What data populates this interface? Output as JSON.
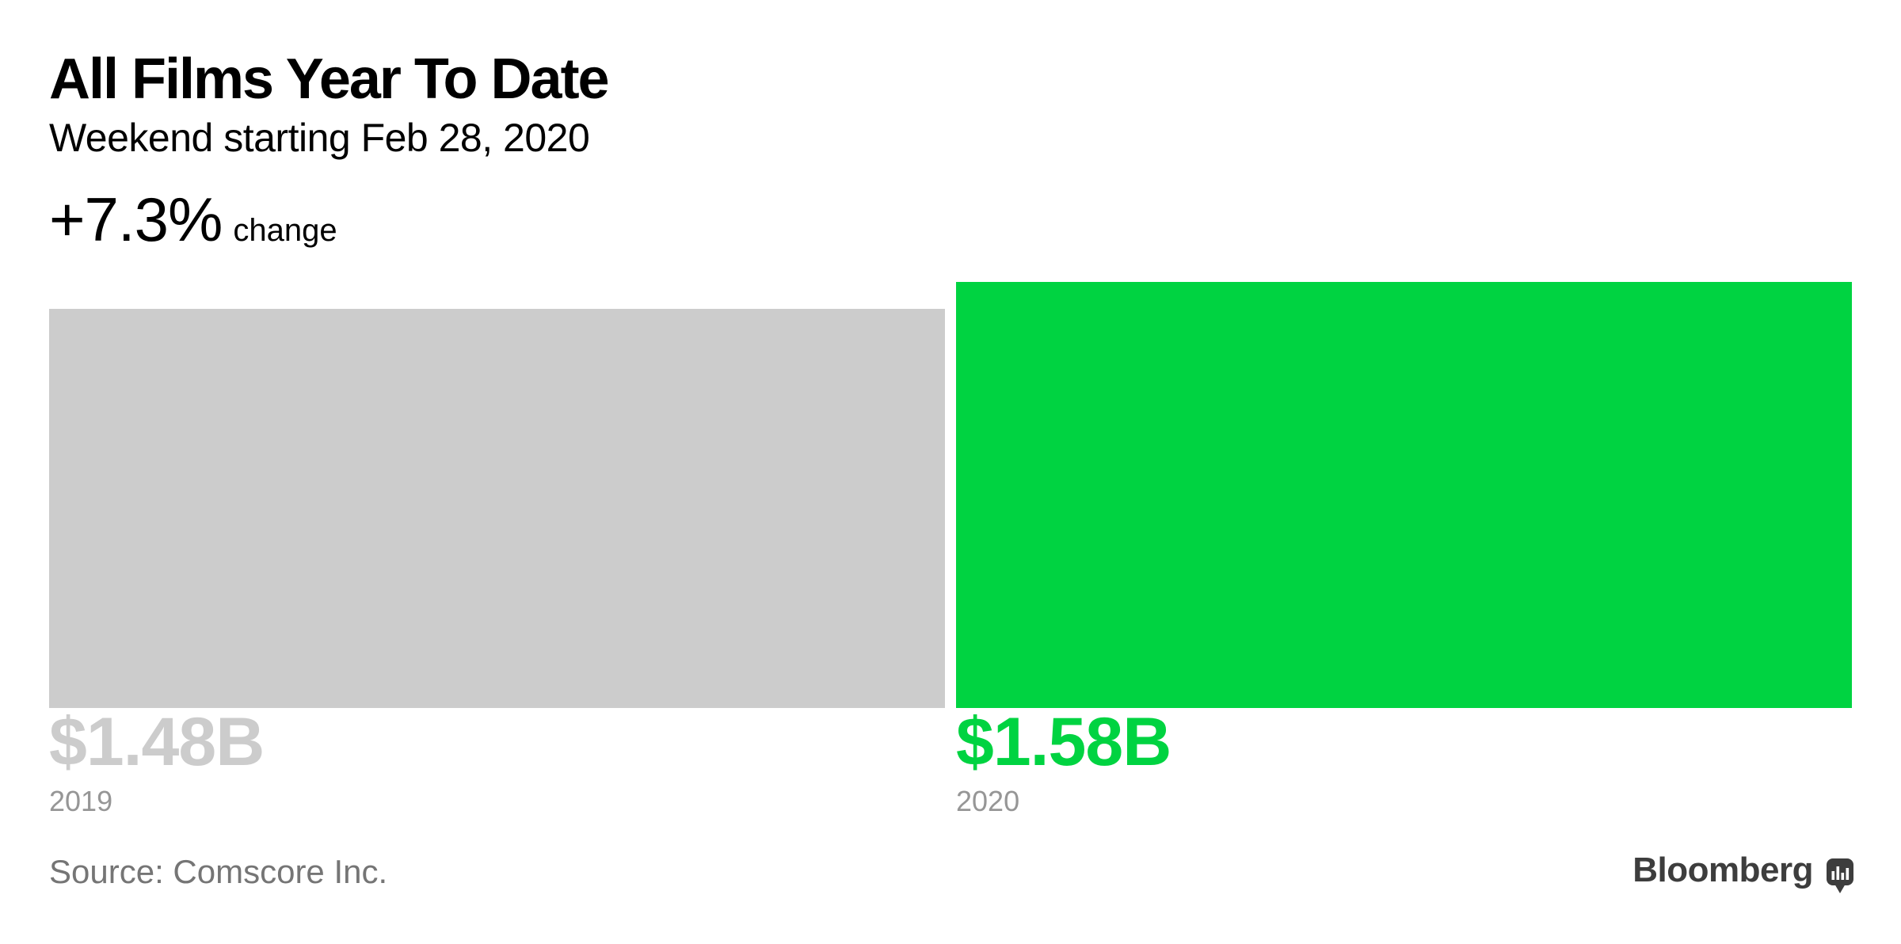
{
  "header": {
    "title": "All Films Year To Date",
    "subtitle": "Weekend starting Feb 28, 2020",
    "change_value": "+7.3%",
    "change_label": "change"
  },
  "chart_data": {
    "type": "bar",
    "title": "All Films Year To Date",
    "subtitle": "Weekend starting Feb 28, 2020",
    "change": "+7.3% change",
    "orientation": "vertical",
    "grid": false,
    "legend": false,
    "unit": "$B",
    "categories": [
      "2019",
      "2020"
    ],
    "values": [
      1.48,
      1.58
    ],
    "ylim": [
      0,
      1.58
    ],
    "points": [
      {
        "category": "2019",
        "value": 1.48,
        "label": "$1.48B",
        "color": "#cccccc"
      },
      {
        "category": "2020",
        "value": 1.58,
        "label": "$1.58B",
        "color": "#00d341"
      }
    ]
  },
  "footer": {
    "source": "Source: Comscore Inc.",
    "brand": "Bloomberg"
  },
  "colors": {
    "bar_previous_year": "#cccccc",
    "bar_current_year": "#00d341",
    "year_label": "#969696",
    "source_text": "#757575",
    "brand": "#3d3d3d",
    "text": "#000000"
  },
  "icons": {
    "brand_mark": "bar-chart-speech-bubble"
  }
}
